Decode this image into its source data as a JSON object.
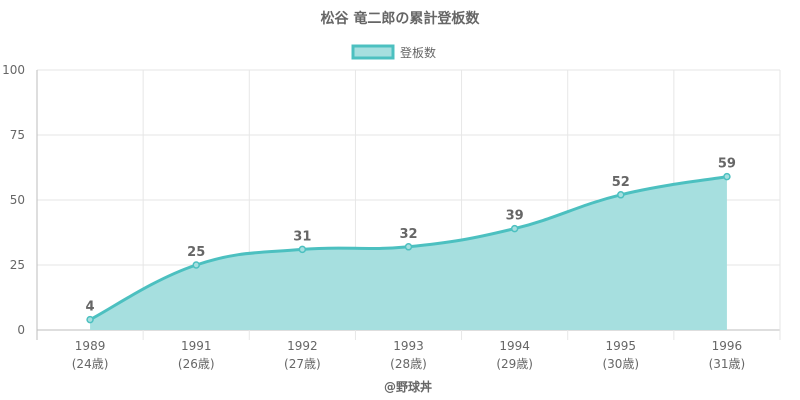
{
  "chart_data": {
    "type": "area",
    "title": "松谷 竜二郎の累計登板数",
    "legend": {
      "label": "登板数",
      "position": "top"
    },
    "x": [
      "1989",
      "1991",
      "1992",
      "1993",
      "1994",
      "1995",
      "1996"
    ],
    "x_sublabels": [
      "(24歳)",
      "(26歳)",
      "(27歳)",
      "(28歳)",
      "(29歳)",
      "(30歳)",
      "(31歳)"
    ],
    "series": [
      {
        "name": "登板数",
        "values": [
          4,
          25,
          31,
          32,
          39,
          52,
          59
        ]
      }
    ],
    "ylim": [
      0,
      100
    ],
    "yticks": [
      0,
      25,
      50,
      75,
      100
    ],
    "grid": true,
    "colors": {
      "line": "#4cc0c0",
      "fill": "#a6dfdf",
      "grid": "#e6e6e6",
      "text": "#666666"
    }
  },
  "footer": {
    "credit": "@野球丼"
  }
}
